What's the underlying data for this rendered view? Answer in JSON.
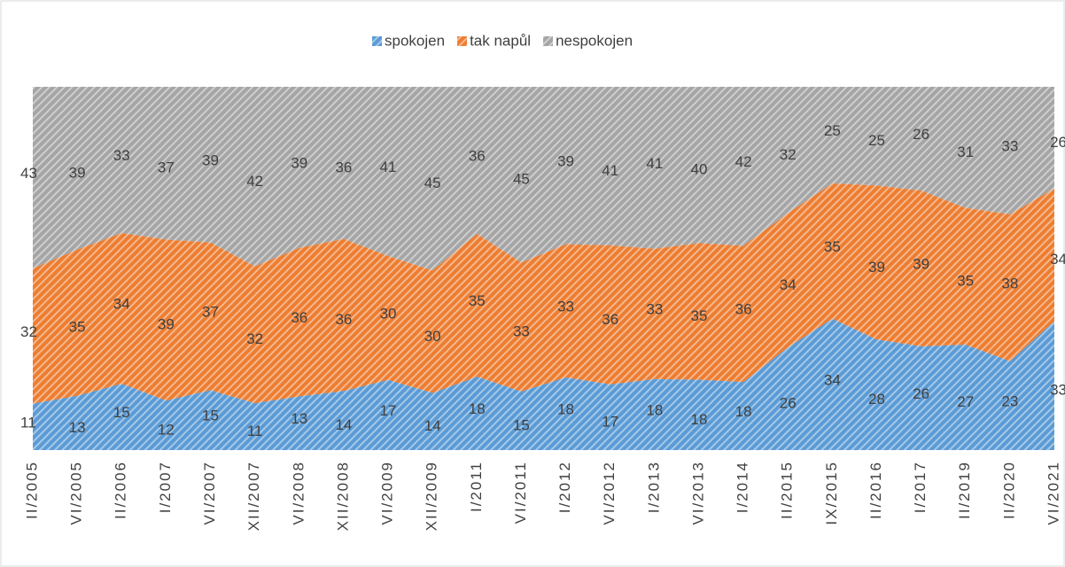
{
  "chart_data": {
    "type": "area",
    "stacking": "percent",
    "legend": "top",
    "categories": [
      "II/2005",
      "VI/2005",
      "II/2006",
      "I/2007",
      "VI/2007",
      "XII/2007",
      "VI/2008",
      "XII/2008",
      "VI/2009",
      "XII/2009",
      "I/2011",
      "VI/2011",
      "I/2012",
      "VI/2012",
      "I/2013",
      "VI/2013",
      "I/2014",
      "II/2015",
      "IX/2015",
      "II/2016",
      "I/2017",
      "II/2019",
      "II/2020",
      "VI/2021"
    ],
    "series": [
      {
        "name": "spokojen",
        "color": "#5b9bd5",
        "values": [
          11,
          13,
          15,
          12,
          15,
          11,
          13,
          14,
          17,
          14,
          18,
          15,
          18,
          17,
          18,
          18,
          18,
          26,
          34,
          28,
          26,
          27,
          23,
          33
        ]
      },
      {
        "name": "tak napůl",
        "color": "#ed7d31",
        "values": [
          32,
          35,
          34,
          39,
          37,
          32,
          36,
          36,
          30,
          30,
          35,
          33,
          33,
          36,
          33,
          35,
          36,
          34,
          35,
          39,
          39,
          35,
          38,
          34
        ]
      },
      {
        "name": "nespokojen",
        "color": "#a5a5a5",
        "values": [
          43,
          39,
          33,
          37,
          39,
          42,
          39,
          36,
          41,
          45,
          36,
          45,
          39,
          41,
          41,
          40,
          42,
          32,
          25,
          25,
          26,
          31,
          33,
          26
        ]
      }
    ]
  }
}
